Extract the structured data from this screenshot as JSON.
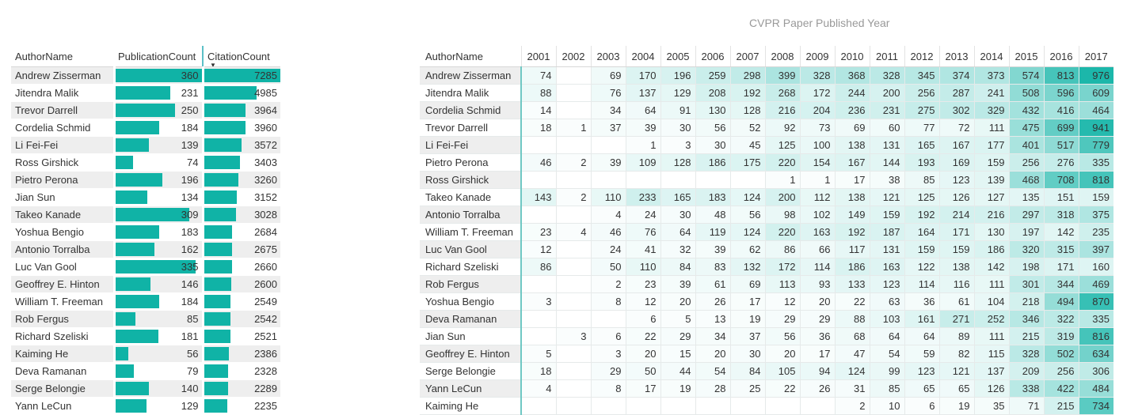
{
  "matrix_title": "CVPR Paper Published Year",
  "left_table": {
    "headers": [
      "AuthorName",
      "PublicationCount",
      "CitationCount"
    ],
    "max_publication": 360,
    "max_citation": 7285,
    "rows": [
      [
        "Andrew Zisserman",
        360,
        7285
      ],
      [
        "Jitendra Malik",
        231,
        4985
      ],
      [
        "Trevor Darrell",
        250,
        3964
      ],
      [
        "Cordelia Schmid",
        184,
        3960
      ],
      [
        "Li Fei-Fei",
        139,
        3572
      ],
      [
        "Ross Girshick",
        74,
        3403
      ],
      [
        "Pietro Perona",
        196,
        3260
      ],
      [
        "Jian Sun",
        134,
        3152
      ],
      [
        "Takeo Kanade",
        309,
        3028
      ],
      [
        "Yoshua Bengio",
        183,
        2684
      ],
      [
        "Antonio Torralba",
        162,
        2675
      ],
      [
        "Luc Van Gool",
        335,
        2660
      ],
      [
        "Geoffrey E. Hinton",
        146,
        2600
      ],
      [
        "William T. Freeman",
        184,
        2549
      ],
      [
        "Rob Fergus",
        85,
        2542
      ],
      [
        "Richard Szeliski",
        181,
        2521
      ],
      [
        "Kaiming He",
        56,
        2386
      ],
      [
        "Deva Ramanan",
        79,
        2328
      ],
      [
        "Serge Belongie",
        140,
        2289
      ],
      [
        "Yann LeCun",
        129,
        2235
      ]
    ]
  },
  "right_table": {
    "name_header": "AuthorName",
    "years": [
      "2001",
      "2002",
      "2003",
      "2004",
      "2005",
      "2006",
      "2007",
      "2008",
      "2009",
      "2010",
      "2011",
      "2012",
      "2013",
      "2014",
      "2015",
      "2016",
      "2017"
    ],
    "max_value": 976,
    "heat_color": "#10b3a6",
    "rows": [
      {
        "name": "Andrew Zisserman",
        "values": [
          74,
          null,
          69,
          170,
          196,
          259,
          298,
          399,
          328,
          368,
          328,
          345,
          374,
          373,
          574,
          813,
          976
        ]
      },
      {
        "name": "Jitendra Malik",
        "values": [
          88,
          null,
          76,
          137,
          129,
          208,
          192,
          268,
          172,
          244,
          200,
          256,
          287,
          241,
          508,
          596,
          609
        ]
      },
      {
        "name": "Cordelia Schmid",
        "values": [
          14,
          null,
          34,
          64,
          91,
          130,
          128,
          216,
          204,
          236,
          231,
          275,
          302,
          329,
          432,
          416,
          464
        ]
      },
      {
        "name": "Trevor Darrell",
        "values": [
          18,
          1,
          37,
          39,
          30,
          56,
          52,
          92,
          73,
          69,
          60,
          77,
          72,
          111,
          475,
          699,
          941
        ]
      },
      {
        "name": "Li Fei-Fei",
        "values": [
          null,
          null,
          null,
          1,
          3,
          30,
          45,
          125,
          100,
          138,
          131,
          165,
          167,
          177,
          401,
          517,
          779
        ]
      },
      {
        "name": "Pietro Perona",
        "values": [
          46,
          2,
          39,
          109,
          128,
          186,
          175,
          220,
          154,
          167,
          144,
          193,
          169,
          159,
          256,
          276,
          335
        ]
      },
      {
        "name": "Ross Girshick",
        "values": [
          null,
          null,
          null,
          null,
          null,
          null,
          null,
          1,
          1,
          17,
          38,
          85,
          123,
          139,
          468,
          708,
          818
        ]
      },
      {
        "name": "Takeo Kanade",
        "values": [
          143,
          2,
          110,
          233,
          165,
          183,
          124,
          200,
          112,
          138,
          121,
          125,
          126,
          127,
          135,
          151,
          159
        ]
      },
      {
        "name": "Antonio Torralba",
        "values": [
          null,
          null,
          4,
          24,
          30,
          48,
          56,
          98,
          102,
          149,
          159,
          192,
          214,
          216,
          297,
          318,
          375
        ]
      },
      {
        "name": "William T. Freeman",
        "values": [
          23,
          4,
          46,
          76,
          64,
          119,
          124,
          220,
          163,
          192,
          187,
          164,
          171,
          130,
          197,
          142,
          235
        ]
      },
      {
        "name": "Luc Van Gool",
        "values": [
          12,
          null,
          24,
          41,
          32,
          39,
          62,
          86,
          66,
          117,
          131,
          159,
          159,
          186,
          320,
          315,
          397
        ]
      },
      {
        "name": "Richard Szeliski",
        "values": [
          86,
          null,
          50,
          110,
          84,
          83,
          132,
          172,
          114,
          186,
          163,
          122,
          138,
          142,
          198,
          171,
          160
        ]
      },
      {
        "name": "Rob Fergus",
        "values": [
          null,
          null,
          2,
          23,
          39,
          61,
          69,
          113,
          93,
          133,
          123,
          114,
          116,
          111,
          301,
          344,
          469
        ]
      },
      {
        "name": "Yoshua Bengio",
        "values": [
          3,
          null,
          8,
          12,
          20,
          26,
          17,
          12,
          20,
          22,
          63,
          36,
          61,
          104,
          218,
          494,
          870
        ]
      },
      {
        "name": "Deva Ramanan",
        "values": [
          null,
          null,
          null,
          6,
          5,
          13,
          19,
          29,
          29,
          88,
          103,
          161,
          271,
          252,
          346,
          322,
          335
        ]
      },
      {
        "name": "Jian Sun",
        "values": [
          null,
          3,
          6,
          22,
          29,
          34,
          37,
          56,
          36,
          68,
          64,
          64,
          89,
          111,
          215,
          319,
          816
        ]
      },
      {
        "name": "Geoffrey E. Hinton",
        "values": [
          5,
          null,
          3,
          20,
          15,
          20,
          30,
          20,
          17,
          47,
          54,
          59,
          82,
          115,
          328,
          502,
          634
        ]
      },
      {
        "name": "Serge Belongie",
        "values": [
          18,
          null,
          29,
          50,
          44,
          54,
          84,
          105,
          94,
          124,
          99,
          123,
          121,
          137,
          209,
          256,
          306
        ]
      },
      {
        "name": "Yann LeCun",
        "values": [
          4,
          null,
          8,
          17,
          19,
          28,
          25,
          22,
          26,
          31,
          85,
          65,
          65,
          126,
          338,
          422,
          484
        ]
      },
      {
        "name": "Kaiming He",
        "values": [
          null,
          null,
          null,
          null,
          null,
          null,
          null,
          null,
          null,
          2,
          10,
          6,
          19,
          35,
          71,
          215,
          734
        ]
      }
    ]
  }
}
